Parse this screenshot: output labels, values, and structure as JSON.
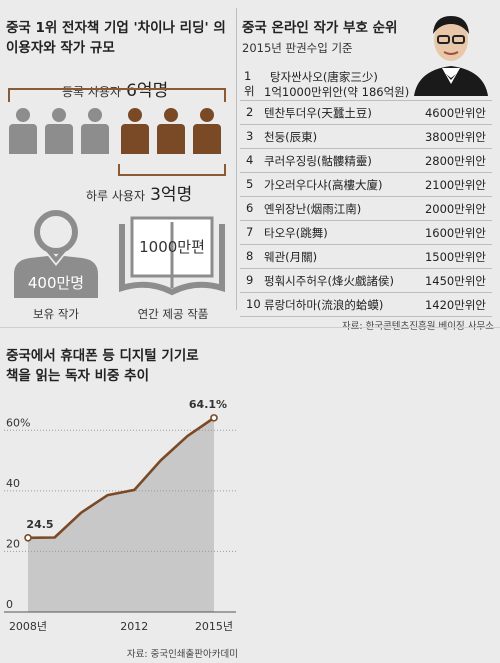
{
  "left_top": {
    "title_line1": "중국 1위 전자책 기업 '차이나 리딩' 의",
    "title_line2": "이용자와 작가 규모",
    "registered_label": "등록 사용자",
    "registered_value": "6억명",
    "daily_label": "하루 사용자",
    "daily_value": "3억명",
    "authors_value": "400만명",
    "authors_label": "보유 작가",
    "works_value": "1000만편",
    "works_label": "연간 제공 작품",
    "colors": {
      "grey": "#8d8d8d",
      "brown": "#7a4a26"
    }
  },
  "ranking": {
    "title": "중국 온라인 작가 부호 순위",
    "subtitle": "2015년 판권수입 기준",
    "items": [
      {
        "rank": "1위",
        "name": "탕자싼사오(唐家三少)",
        "value": "1억1000만위안(약 186억원)"
      },
      {
        "rank": "2",
        "name": "텐찬투더우(天蠶土豆)",
        "value": "4600만위안"
      },
      {
        "rank": "3",
        "name": "천둥(辰東)",
        "value": "3800만위안"
      },
      {
        "rank": "4",
        "name": "쿠러우징링(骷髏精靈)",
        "value": "2800만위안"
      },
      {
        "rank": "5",
        "name": "가오러우다샤(高樓大廈)",
        "value": "2100만위안"
      },
      {
        "rank": "6",
        "name": "옌위장난(烟雨江南)",
        "value": "2000만위안"
      },
      {
        "rank": "7",
        "name": "타오우(跳舞)",
        "value": "1600만위안"
      },
      {
        "rank": "8",
        "name": "웨관(月關)",
        "value": "1500만위안"
      },
      {
        "rank": "9",
        "name": "펑훠시주허우(烽火戲諸侯)",
        "value": "1450만위안"
      },
      {
        "rank": "10",
        "name": "류랑더하마(流浪的蛤蟆)",
        "value": "1420만위안"
      }
    ],
    "source": "자료: 한국콘텐츠진흥원 베이징 사무소"
  },
  "chart_title_line1": "중국에서 휴대폰 등 디지털 기기로",
  "chart_title_line2": "책을 읽는 독자 비중 추이",
  "chart_source": "자료: 중국인쇄출판아카데미",
  "chart_data": {
    "type": "area",
    "x": [
      2008,
      2009,
      2010,
      2011,
      2012,
      2013,
      2014,
      2015
    ],
    "series": [
      {
        "values": [
          24.5,
          24.6,
          32.8,
          38.6,
          40.3,
          50.1,
          58.1,
          64.1
        ]
      }
    ],
    "annotations": [
      {
        "x": 2008,
        "label": "24.5"
      },
      {
        "x": 2015,
        "label": "64.1%"
      }
    ],
    "ylim": [
      0,
      70
    ],
    "y_ticks": [
      {
        "v": 0,
        "label": "0"
      },
      {
        "v": 20,
        "label": "20"
      },
      {
        "v": 40,
        "label": "40"
      },
      {
        "v": 60,
        "label": "60%"
      }
    ],
    "x_ticks": [
      {
        "v": 2008,
        "label": "2008년"
      },
      {
        "v": 2012,
        "label": "2012"
      },
      {
        "v": 2015,
        "label": "2015년"
      }
    ],
    "colors": {
      "area": "#c8c8c8",
      "line": "#7a4a26",
      "point_fill": "#ffffff"
    },
    "grid": true
  }
}
